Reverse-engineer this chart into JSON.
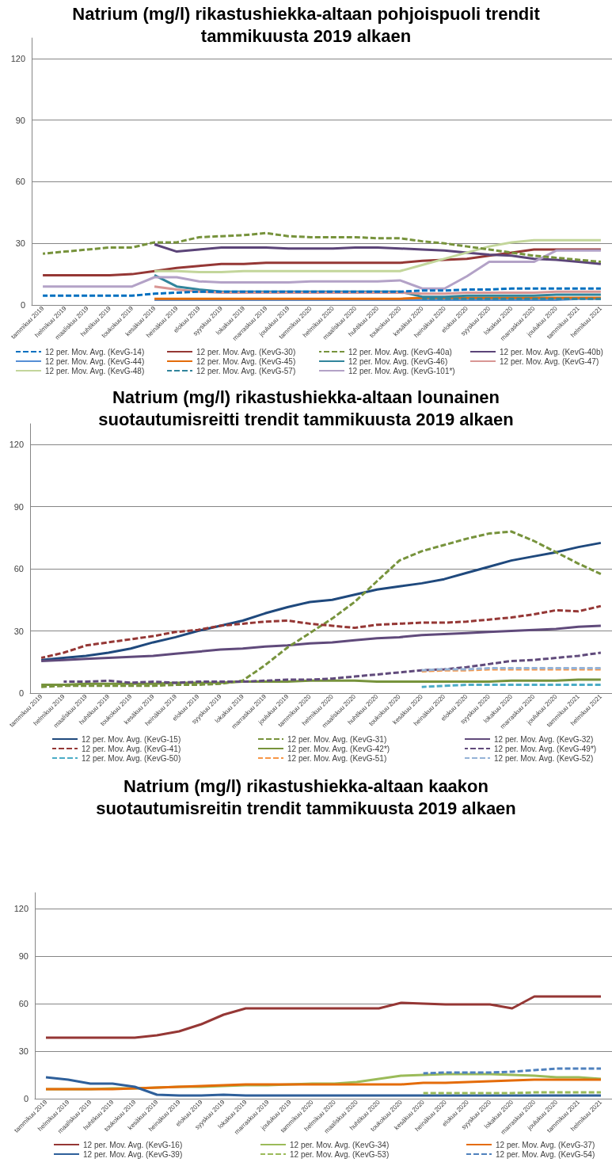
{
  "chart_data": [
    {
      "type": "line",
      "title": "Natrium (mg/l) rikastushiekka-altaan pohjoispuoli trendit tammikuusta 2019 alkaen",
      "categories": [
        "tammikuu 2019",
        "helmikuu 2019",
        "maaliskuu 2019",
        "huhtikuu 2019",
        "toukokuu 2019",
        "kesäkuu 2019",
        "heinäkuu 2019",
        "elokuu 2019",
        "syyskuu 2019",
        "lokakuu 2019",
        "marraskuu 2019",
        "joulukuu 2019",
        "tammikuu 2020",
        "helmikuu 2020",
        "maaliskuu 2020",
        "huhtikuu 2020",
        "toukokuu 2020",
        "kesäkuu 2020",
        "heinäkuu 2020",
        "elokuu 2020",
        "syyskuu 2020",
        "lokakuu 2020",
        "marraskuu 2020",
        "joulukuu 2020",
        "tammikuu 2021",
        "helmikuu 2021"
      ],
      "ylim": [
        0,
        130
      ],
      "yticks": [
        0,
        30,
        60,
        90,
        120
      ],
      "grid": "y",
      "legend": "bottom",
      "marker": "none",
      "series": [
        {
          "name": "12 per. Mov. Avg. (KevG-14)",
          "color": "#0070c0",
          "line_style": "dashed",
          "values": [
            4.5,
            4.5,
            4.5,
            4.5,
            4.5,
            5.5,
            6,
            6.5,
            6.5,
            6.5,
            6.5,
            6.5,
            6.5,
            6.5,
            6.5,
            6.5,
            6.5,
            7,
            7,
            7.5,
            7.5,
            8,
            8,
            8,
            8,
            8
          ]
        },
        {
          "name": "12 per. Mov. Avg. (KevG-30)",
          "color": "#953735",
          "line_style": "solid",
          "values": [
            14.5,
            14.5,
            14.5,
            14.5,
            15,
            16.5,
            18,
            19,
            20,
            20,
            20.5,
            20.5,
            20.5,
            20.5,
            20.5,
            20.5,
            20.5,
            21.5,
            22,
            22.5,
            24,
            25.5,
            27,
            27,
            27,
            27
          ]
        },
        {
          "name": "12 per. Mov. Avg. (KevG-40a)",
          "color": "#77933c",
          "line_style": "dashed",
          "values": [
            25,
            26,
            27,
            28,
            28,
            30.5,
            30.5,
            33,
            33.5,
            34,
            35,
            33.5,
            33,
            33,
            33,
            32.5,
            32.5,
            31,
            30,
            28.5,
            27,
            25.5,
            24,
            23,
            22,
            21
          ]
        },
        {
          "name": "12 per. Mov. Avg. (KevG-40b)",
          "color": "#5b4478",
          "line_style": "solid",
          "values": [
            null,
            null,
            null,
            null,
            null,
            29.5,
            26,
            27,
            28,
            28,
            28,
            27.5,
            27.5,
            27.5,
            28,
            28,
            27.5,
            27,
            26.5,
            25.5,
            24.5,
            24,
            22.5,
            22,
            21,
            20
          ]
        },
        {
          "name": "12 per. Mov. Avg. (KevG-44)",
          "color": "#558ed5",
          "line_style": "solid",
          "values": [
            null,
            null,
            null,
            null,
            null,
            2.5,
            2.5,
            2.5,
            2.5,
            2.5,
            2.5,
            2.5,
            2.5,
            2.5,
            2.5,
            2.5,
            2.5,
            2.5,
            2.5,
            2.5,
            2.5,
            2.5,
            2.5,
            2.5,
            3,
            3
          ]
        },
        {
          "name": "12 per. Mov. Avg. (KevG-45)",
          "color": "#e46c0a",
          "line_style": "solid",
          "values": [
            null,
            null,
            null,
            null,
            null,
            3,
            3,
            3,
            3,
            3,
            3,
            3,
            3,
            3,
            3,
            3,
            3,
            3.5,
            3.5,
            3.5,
            3.5,
            3.5,
            3.5,
            3.5,
            3.5,
            3.5
          ]
        },
        {
          "name": "12 per. Mov. Avg. (KevG-46)",
          "color": "#31859c",
          "line_style": "solid",
          "values": [
            null,
            null,
            null,
            null,
            null,
            14.5,
            9,
            7.5,
            6.5,
            6.5,
            6.5,
            6.5,
            6.5,
            6.5,
            6.5,
            6.5,
            6.5,
            4,
            4,
            4.5,
            4.5,
            4.5,
            4.5,
            5,
            5,
            5
          ]
        },
        {
          "name": "12 per. Mov. Avg. (KevG-47)",
          "color": "#d99694",
          "line_style": "solid",
          "values": [
            null,
            null,
            null,
            null,
            null,
            9,
            7.5,
            6.5,
            6,
            6,
            6,
            6,
            6,
            6,
            6,
            6,
            6,
            5.5,
            5.5,
            6,
            6,
            6,
            6,
            6.5,
            6.5,
            6.5
          ]
        },
        {
          "name": "12 per. Mov. Avg. (KevG-48)",
          "color": "#c3d69b",
          "line_style": "solid",
          "values": [
            null,
            null,
            null,
            null,
            null,
            16.5,
            16.5,
            16,
            16,
            16.5,
            16.5,
            16.5,
            16.5,
            16.5,
            16.5,
            16.5,
            16.5,
            19.5,
            22.5,
            25.5,
            28.5,
            30.5,
            31.5,
            31.5,
            31.5,
            31.5
          ]
        },
        {
          "name": "12 per. Mov. Avg. (KevG-57)",
          "color": "#31859c",
          "line_style": "dashed",
          "values": [
            null,
            null,
            null,
            null,
            null,
            null,
            null,
            null,
            null,
            null,
            null,
            null,
            null,
            null,
            null,
            null,
            null,
            3,
            3,
            3,
            3,
            3,
            3,
            3,
            3,
            3
          ]
        },
        {
          "name": "12 per. Mov. Avg. (KevG-101*)",
          "color": "#b3a2c7",
          "line_style": "solid",
          "values": [
            9,
            9,
            9,
            9,
            9,
            13.5,
            13.5,
            11.5,
            11,
            11,
            11,
            11,
            11.5,
            11.5,
            11.5,
            11.5,
            12,
            8,
            8,
            14,
            21,
            21,
            21,
            26.5,
            26.5,
            26.5
          ]
        }
      ]
    },
    {
      "type": "line",
      "title": "Natrium (mg/l) rikastushiekka-altaan lounainen suotautumisreitti trendit tammikuusta 2019 alkaen",
      "categories": [
        "tammikuu 2019",
        "helmikuu 2019",
        "maaliskuu 2019",
        "huhtikuu 2019",
        "toukokuu 2019",
        "kesäkuu 2019",
        "heinäkuu 2019",
        "elokuu 2019",
        "syyskuu 2019",
        "lokakuu 2019",
        "marraskuu 2019",
        "joulukuu 2019",
        "tammikuu 2020",
        "helmikuu 2020",
        "maaliskuu 2020",
        "huhtikuu 2020",
        "toukokuu 2020",
        "kesäkuu 2020",
        "heinäkuu 2020",
        "elokuu 2020",
        "syyskuu 2020",
        "lokakuu 2020",
        "marraskuu 2020",
        "joulukuu 2020",
        "tammikuu 2021",
        "helmikuu 2021"
      ],
      "ylim": [
        0,
        130
      ],
      "yticks": [
        0,
        30,
        60,
        90,
        120
      ],
      "grid": "y",
      "legend": "bottom",
      "marker": "none",
      "series": [
        {
          "name": "12 per. Mov. Avg. (KevG-15)",
          "color": "#1f497d",
          "line_style": "solid",
          "values": [
            16,
            17,
            18,
            19.5,
            21.5,
            24.5,
            27,
            30,
            32.5,
            35,
            38.5,
            41.5,
            44,
            45,
            47.5,
            50,
            51.5,
            53,
            55,
            58,
            61,
            64,
            66,
            68,
            70.5,
            72.5
          ]
        },
        {
          "name": "12 per. Mov. Avg. (KevG-31)",
          "color": "#77933c",
          "line_style": "dashed",
          "values": [
            3,
            3.5,
            3.5,
            3.5,
            3.5,
            3.5,
            4,
            4,
            4.5,
            6,
            13.5,
            22,
            29,
            36,
            44,
            54,
            64,
            68.5,
            71.5,
            74.5,
            77,
            78,
            73.5,
            68,
            62.5,
            57.5
          ]
        },
        {
          "name": "12 per. Mov. Avg. (KevG-32)",
          "color": "#604a7b",
          "line_style": "solid",
          "values": [
            15.5,
            16,
            16.5,
            17,
            17.5,
            18,
            19,
            20,
            21,
            21.5,
            22.5,
            23,
            24,
            24.5,
            25.5,
            26.5,
            27,
            28,
            28.5,
            29,
            29.5,
            30,
            30.5,
            31,
            32,
            32.5
          ]
        },
        {
          "name": "12 per. Mov. Avg. (KevG-41)",
          "color": "#953735",
          "line_style": "dashed",
          "values": [
            17,
            19.5,
            23,
            24.5,
            26,
            27.5,
            29.5,
            30.5,
            32.5,
            33.5,
            34.5,
            35,
            33.5,
            32.5,
            31.5,
            33,
            33.5,
            34,
            34,
            34.5,
            35.5,
            36.5,
            38,
            40,
            39.5,
            42
          ]
        },
        {
          "name": "12 per. Mov. Avg. (KevG-42*)",
          "color": "#77933c",
          "line_style": "solid",
          "values": [
            4,
            4,
            4.5,
            4.5,
            4.5,
            4.5,
            5,
            5,
            5,
            5.5,
            5.5,
            5.5,
            6,
            6,
            6,
            5.5,
            5.5,
            5.5,
            5.5,
            5.5,
            5.5,
            6,
            6,
            6,
            6.5,
            6.5
          ]
        },
        {
          "name": "12 per. Mov. Avg. (KevG-49*)",
          "color": "#604a7b",
          "line_style": "dashed",
          "values": [
            null,
            5.5,
            5.5,
            6,
            5,
            5.5,
            5,
            5.5,
            5.5,
            5.5,
            6,
            6.5,
            6.5,
            7,
            8,
            9,
            10,
            11,
            11.5,
            12.5,
            14,
            15.5,
            16,
            17,
            18,
            19.5
          ]
        },
        {
          "name": "12 per. Mov. Avg. (KevG-50)",
          "color": "#4bacc6",
          "line_style": "dashed",
          "values": [
            null,
            null,
            null,
            null,
            null,
            null,
            null,
            null,
            null,
            null,
            null,
            null,
            null,
            null,
            null,
            null,
            null,
            3,
            3.5,
            4,
            4,
            4,
            4,
            4,
            4,
            4
          ]
        },
        {
          "name": "12 per. Mov. Avg. (KevG-51)",
          "color": "#f79646",
          "line_style": "dashed",
          "values": [
            null,
            null,
            null,
            null,
            null,
            null,
            null,
            null,
            null,
            null,
            null,
            null,
            null,
            null,
            null,
            null,
            null,
            10.5,
            11,
            11,
            11.5,
            11.5,
            11.5,
            11.5,
            11.5,
            11.5
          ]
        },
        {
          "name": "12 per. Mov. Avg. (KevG-52)",
          "color": "#95b3d7",
          "line_style": "dashed",
          "values": [
            null,
            null,
            null,
            null,
            null,
            null,
            null,
            null,
            null,
            null,
            null,
            null,
            null,
            null,
            null,
            null,
            null,
            11,
            11.5,
            11.5,
            12,
            12,
            12,
            12,
            12,
            12
          ]
        }
      ]
    },
    {
      "type": "line",
      "title": "Natrium (mg/l) rikastushiekka-altaan kaakon suotautumisreitin trendit tammikuusta 2019 alkaen",
      "categories": [
        "tammikuu 2019",
        "helmikuu 2019",
        "maaliskuu 2019",
        "huhtikuu 2019",
        "toukokuu 2019",
        "kesäkuu 2019",
        "heinäkuu 2019",
        "elokuu 2019",
        "syyskuu 2019",
        "lokakuu 2019",
        "marraskuu 2019",
        "joulukuu 2019",
        "tammikuu 2020",
        "helmikuu 2020",
        "maaliskuu 2020",
        "huhtikuu 2020",
        "toukokuu 2020",
        "kesäkuu 2020",
        "heinäkuu 2020",
        "elokuu 2020",
        "syyskuu 2020",
        "lokakuu 2020",
        "marraskuu 2020",
        "joulukuu 2020",
        "tammikuu 2021",
        "helmikuu 2021"
      ],
      "ylim": [
        0,
        130
      ],
      "yticks": [
        0,
        30,
        60,
        90,
        120
      ],
      "grid": "y",
      "legend": "bottom",
      "marker": "none",
      "series": [
        {
          "name": "12 per. Mov. Avg. (KevG-16)",
          "color": "#953735",
          "line_style": "solid",
          "values": [
            38.5,
            38.5,
            38.5,
            38.5,
            38.5,
            40,
            42.5,
            47,
            53,
            57,
            57,
            57,
            57,
            57,
            57,
            57,
            60.5,
            60,
            59.5,
            59.5,
            59.5,
            57,
            64.5,
            64.5,
            64.5,
            64.5
          ]
        },
        {
          "name": "12 per. Mov. Avg. (KevG-34)",
          "color": "#9bbb59",
          "line_style": "solid",
          "values": [
            6,
            6,
            6,
            6.5,
            6.5,
            7,
            7.5,
            7.5,
            8,
            8.5,
            8.5,
            9,
            9.5,
            9.5,
            10.5,
            12.5,
            14.5,
            15,
            15.5,
            15.5,
            15.5,
            15,
            14.5,
            13.5,
            13.5,
            12.5
          ]
        },
        {
          "name": "12 per. Mov. Avg. (KevG-37)",
          "color": "#e46c0a",
          "line_style": "solid",
          "values": [
            6,
            6,
            6,
            6,
            6.5,
            7,
            7.5,
            8,
            8.5,
            9,
            9,
            9,
            9,
            9,
            9,
            9,
            9,
            10,
            10,
            10.5,
            11,
            11.5,
            12,
            12,
            12,
            12
          ]
        },
        {
          "name": "12 per. Mov. Avg. (KevG-39)",
          "color": "#2e5f9a",
          "line_style": "solid",
          "values": [
            13.5,
            12,
            9.5,
            9.5,
            7.5,
            2.5,
            2,
            2,
            2.5,
            2,
            2,
            2,
            2,
            2,
            2,
            2,
            2,
            2,
            2,
            2,
            2,
            2,
            2,
            2,
            2,
            2
          ]
        },
        {
          "name": "12 per. Mov. Avg. (KevG-53)",
          "color": "#9bbb59",
          "line_style": "dashed",
          "values": [
            null,
            null,
            null,
            null,
            null,
            null,
            null,
            null,
            null,
            null,
            null,
            null,
            null,
            null,
            null,
            null,
            null,
            3.5,
            3.5,
            3.5,
            3.5,
            3.5,
            4,
            4,
            4,
            4
          ]
        },
        {
          "name": "12 per. Mov. Avg. (KevG-54)",
          "color": "#4f81bd",
          "line_style": "dashed",
          "values": [
            null,
            null,
            null,
            null,
            null,
            null,
            null,
            null,
            null,
            null,
            null,
            null,
            null,
            null,
            null,
            null,
            null,
            16,
            16.5,
            16.5,
            16.5,
            17,
            18,
            19,
            19,
            19
          ]
        }
      ]
    }
  ]
}
